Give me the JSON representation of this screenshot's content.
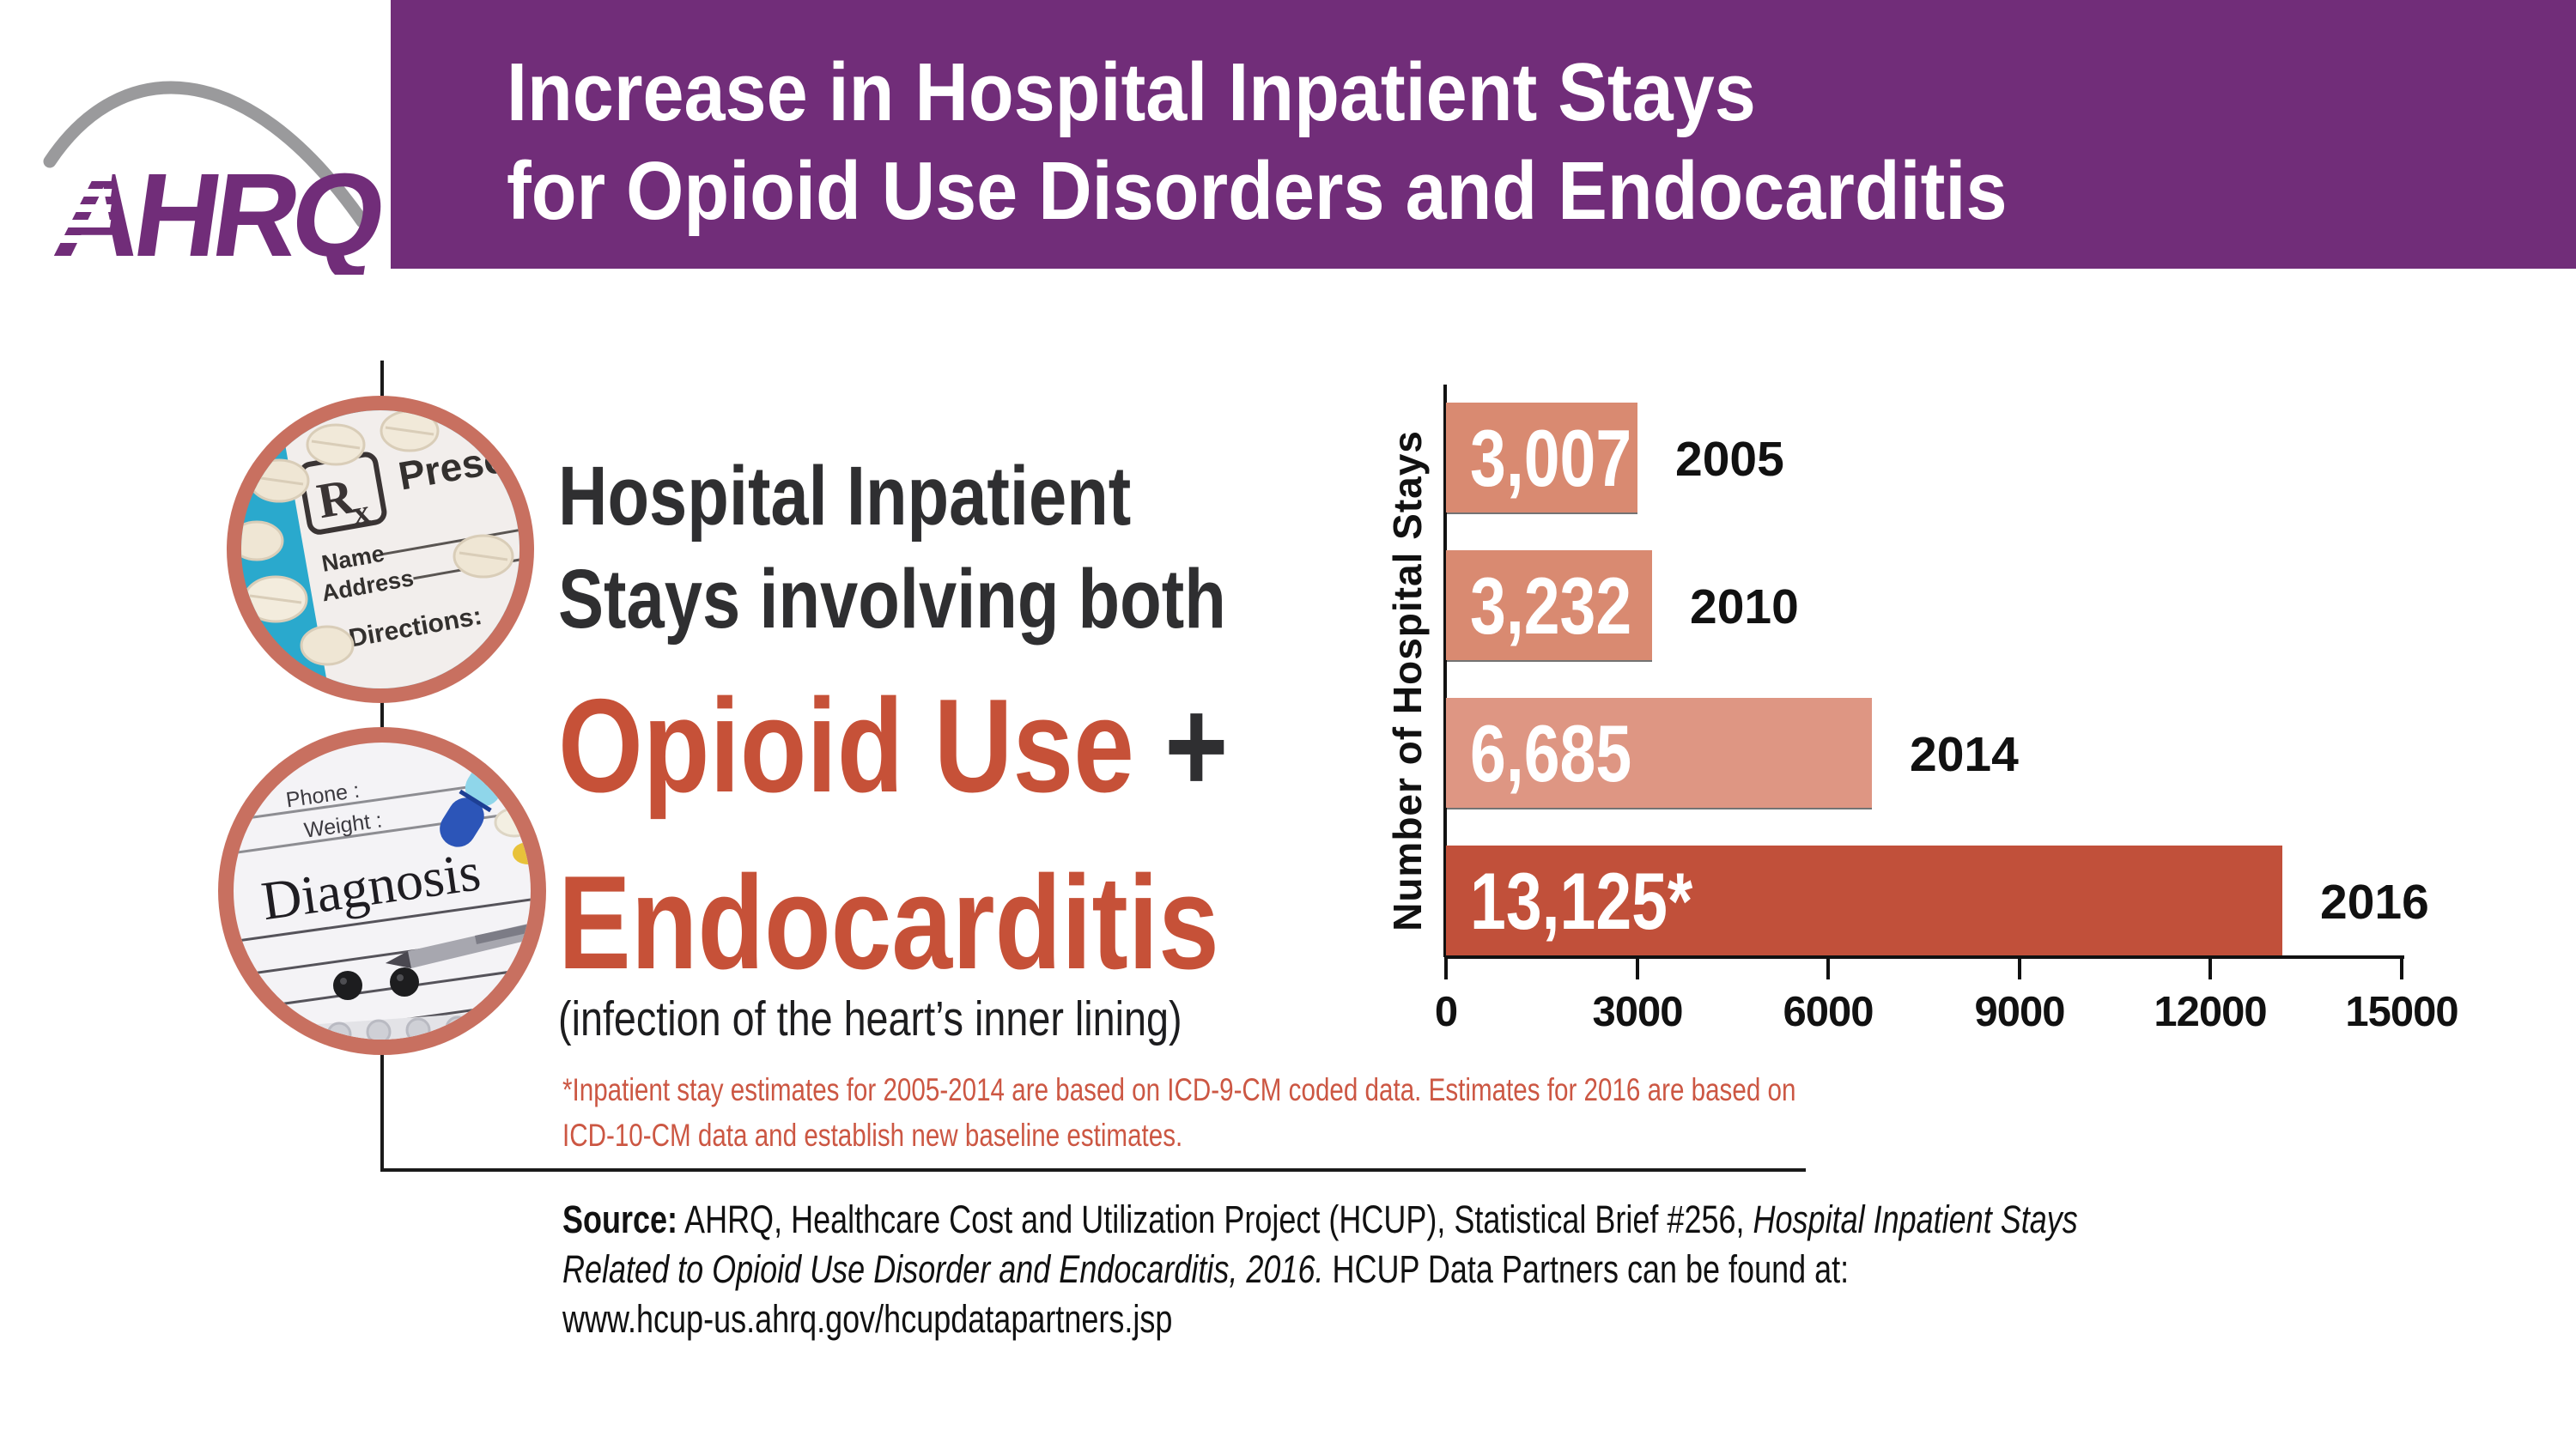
{
  "colors": {
    "purple": "#712d79",
    "accent_red": "#c65138",
    "footnote_red": "#cc5743",
    "bar_salmon": "#d98a71",
    "bar_salmon_light": "#de9683",
    "bar_dark": "#c1503a",
    "circle_border": "#c87060",
    "teal": "#2aa9cd",
    "dark_text": "#2f2f31"
  },
  "banner": {
    "title_line1": "Increase in Hospital Inpatient Stays",
    "title_line2": "for Opioid Use Disorders and Endocarditis"
  },
  "logo": {
    "name": "AHRQ"
  },
  "headline": {
    "line1": "Hospital Inpatient",
    "line2": "Stays involving both",
    "term1": "Opioid Use",
    "plus": "+",
    "term2": "Endocarditis",
    "subtitle": "(infection of the heart’s inner lining)"
  },
  "photos": {
    "prescription": {
      "rx": "R",
      "rx_sub": "x",
      "word": "Prescr",
      "name_label": "Name",
      "address_label": "Address",
      "directions_label": "Directions:"
    },
    "diagnosis": {
      "phone_label": "Phone :",
      "weight_label": "Weight :",
      "title": "Diagnosis"
    }
  },
  "chart_data": {
    "type": "bar",
    "orientation": "horizontal",
    "ylabel": "Number of Hospital Stays",
    "categories": [
      "2005",
      "2010",
      "2014",
      "2016"
    ],
    "values": [
      3007,
      3232,
      6685,
      13125
    ],
    "value_labels": [
      "3,007",
      "3,232",
      "6,685",
      "13,125*"
    ],
    "bar_colors": [
      "#d98a71",
      "#d98a71",
      "#de9683",
      "#c1503a"
    ],
    "x_ticks": [
      0,
      3000,
      6000,
      9000,
      12000,
      15000
    ],
    "xlim": [
      0,
      15000
    ],
    "grid": false,
    "note_marker": "*"
  },
  "footnote": {
    "line1": "*Inpatient stay estimates for 2005-2014 are based on ICD-9-CM coded data. Estimates for 2016 are based on",
    "line2": "ICD-10-CM data and establish new baseline estimates."
  },
  "source": {
    "label": "Source:",
    "part1": " AHRQ, Healthcare Cost and Utilization Project (HCUP), Statistical Brief #256, ",
    "italic": "Hospital Inpatient Stays Related to Opioid Use Disorder and Endocarditis, 2016.",
    "part2": " HCUP Data Partners can be found at:",
    "url": "www.hcup-us.ahrq.gov/hcupdatapartners.jsp"
  }
}
